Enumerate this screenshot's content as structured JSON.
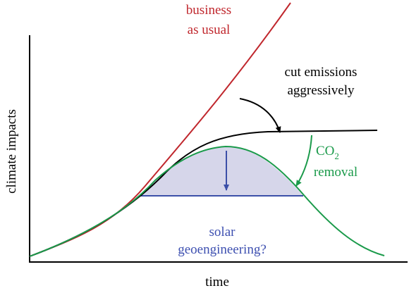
{
  "axes": {
    "y_label": "climate impacts",
    "x_label": "time"
  },
  "business_as_usual": {
    "lines": [
      "business",
      "as usual"
    ]
  },
  "cut_emissions": {
    "lines": [
      "cut emissions",
      "aggressively"
    ]
  },
  "co2_removal": {
    "main": "CO",
    "subscript": "2",
    "second_line": "removal"
  },
  "solar_geoengineering": {
    "lines": [
      "solar",
      "geoengineering?"
    ]
  }
}
